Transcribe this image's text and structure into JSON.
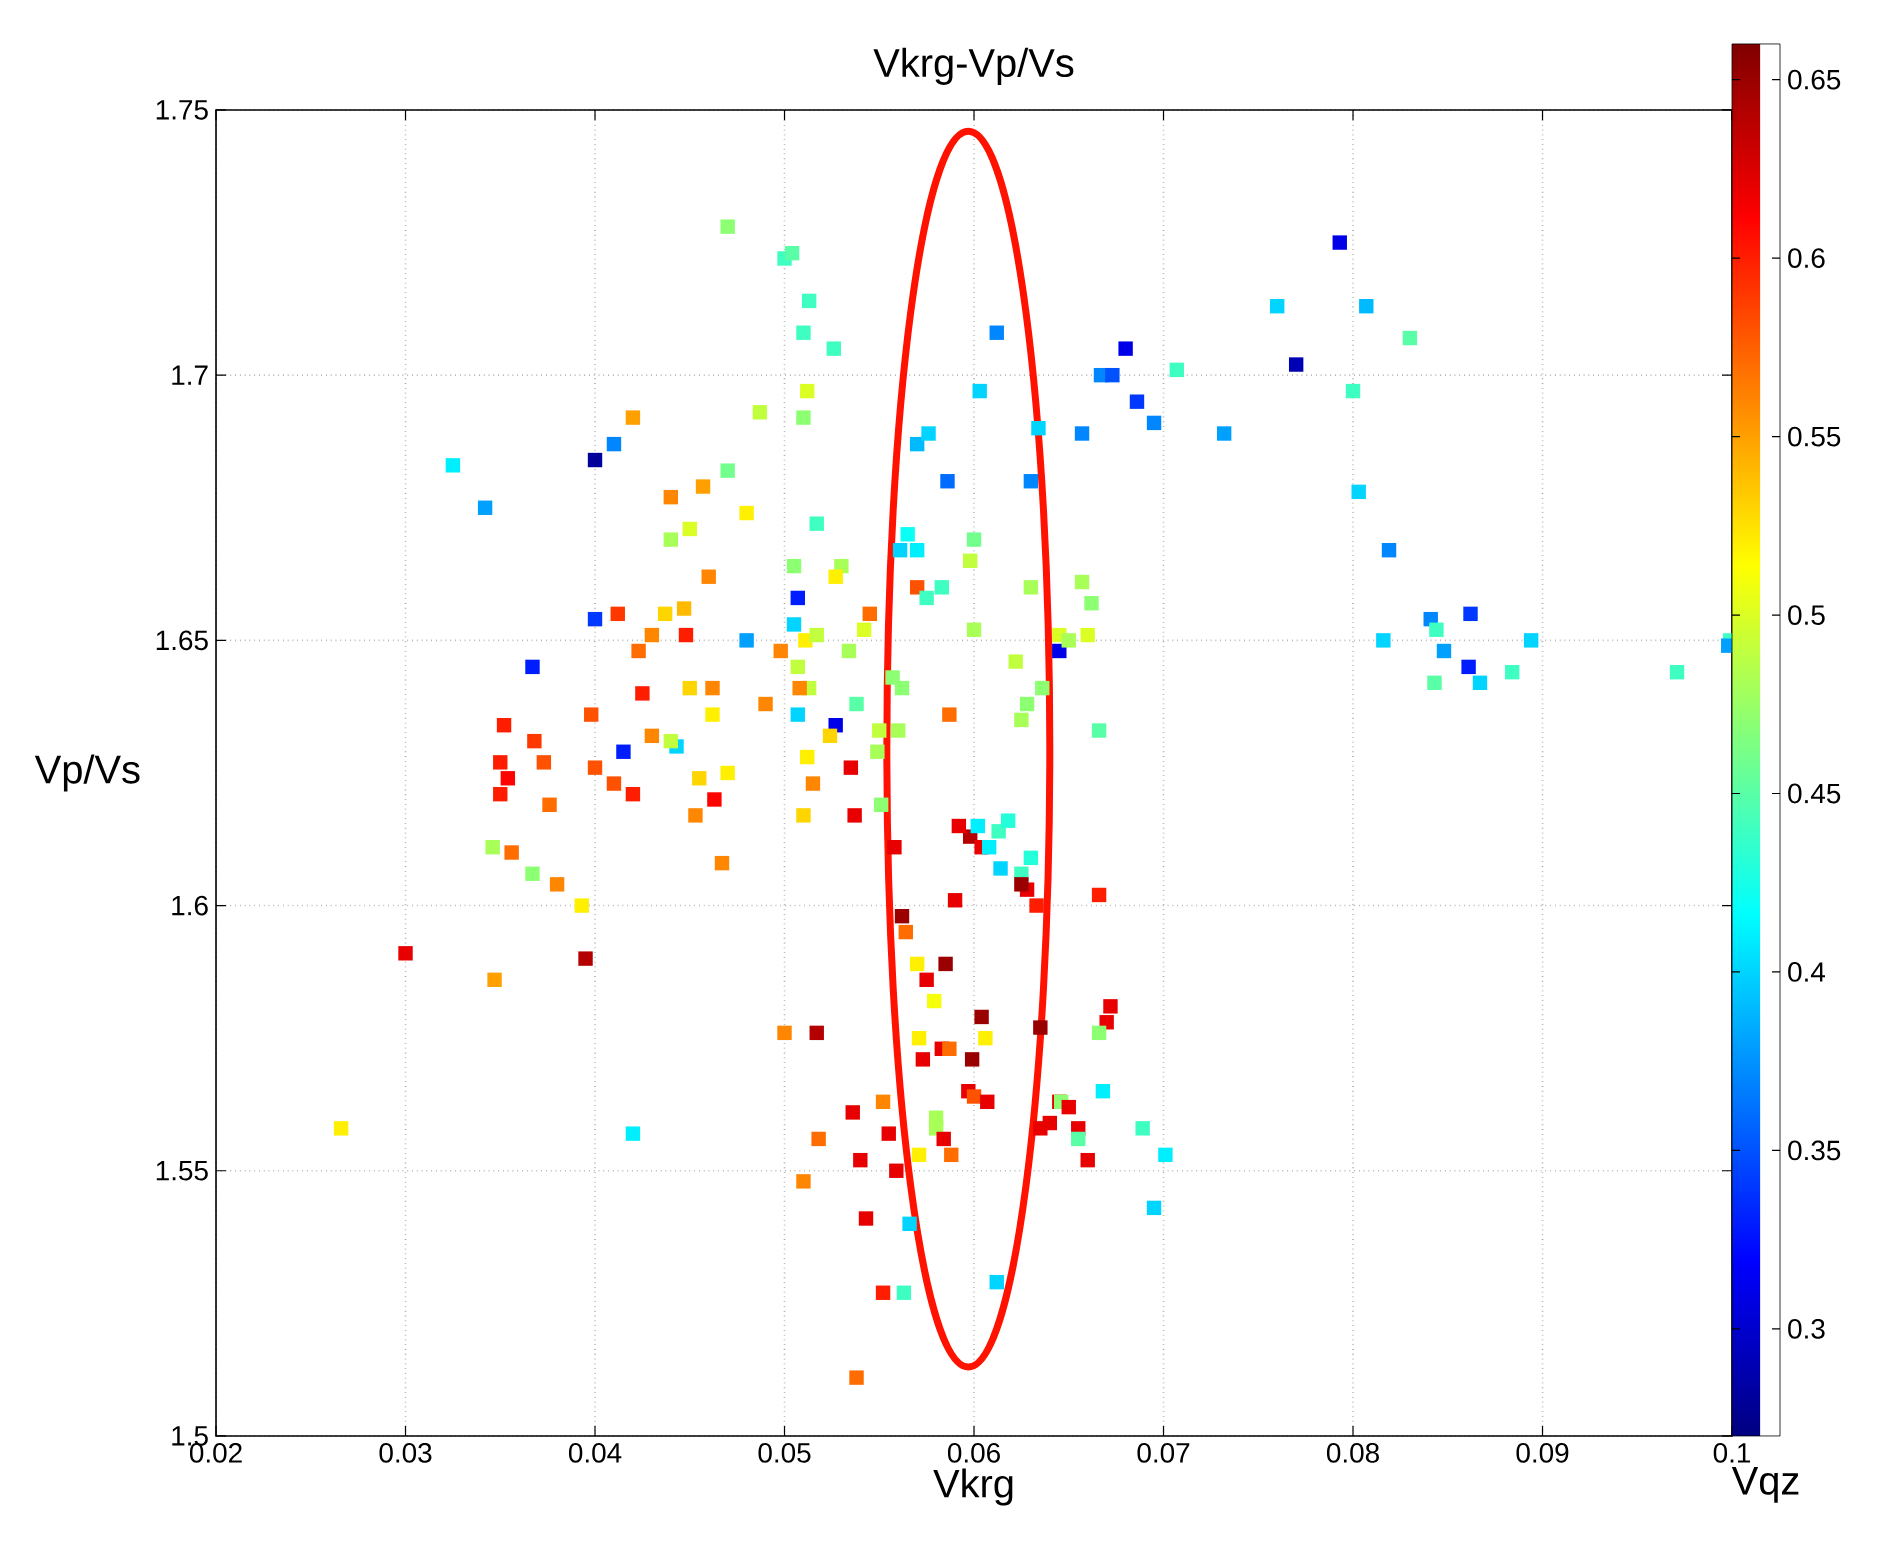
{
  "chart_data": {
    "type": "scatter",
    "title": "Vkrg-Vp/Vs",
    "xlabel": "Vkrg",
    "ylabel": "Vp/Vs",
    "clabel": "Vqz",
    "xlim": [
      0.02,
      0.1
    ],
    "xticks": [
      0.02,
      0.03,
      0.04,
      0.05,
      0.06,
      0.07,
      0.08,
      0.09,
      0.1
    ],
    "ylim": [
      1.5,
      1.75
    ],
    "yticks": [
      1.5,
      1.55,
      1.6,
      1.65,
      1.7,
      1.75
    ],
    "clim": [
      0.27,
      0.66
    ],
    "cticks": [
      0.3,
      0.35,
      0.4,
      0.45,
      0.5,
      0.55,
      0.6,
      0.65
    ],
    "grid": true,
    "marker": "square",
    "x": [
      0.0325,
      0.0342,
      0.04,
      0.041,
      0.042,
      0.0367,
      0.04,
      0.0412,
      0.0352,
      0.035,
      0.0354,
      0.035,
      0.0368,
      0.0373,
      0.0376,
      0.0346,
      0.0356,
      0.0367,
      0.038,
      0.0393,
      0.03,
      0.0395,
      0.0347,
      0.0266,
      0.042,
      0.0398,
      0.04,
      0.041,
      0.042,
      0.0415,
      0.0423,
      0.0425,
      0.043,
      0.043,
      0.0443,
      0.0437,
      0.045,
      0.044,
      0.044,
      0.044,
      0.045,
      0.0457,
      0.046,
      0.0447,
      0.0462,
      0.0462,
      0.0455,
      0.0453,
      0.0448,
      0.0463,
      0.0467,
      0.047,
      0.047,
      0.047,
      0.048,
      0.048,
      0.0487,
      0.049,
      0.0498,
      0.0505,
      0.05,
      0.0504,
      0.0513,
      0.051,
      0.0526,
      0.0512,
      0.051,
      0.0507,
      0.0505,
      0.0511,
      0.0507,
      0.0513,
      0.0517,
      0.0508,
      0.0507,
      0.0512,
      0.0515,
      0.051,
      0.05,
      0.0517,
      0.0518,
      0.051,
      0.0527,
      0.0524,
      0.053,
      0.0527,
      0.0517,
      0.0534,
      0.0538,
      0.0542,
      0.055,
      0.0535,
      0.0537,
      0.0545,
      0.0549,
      0.0551,
      0.0536,
      0.054,
      0.0543,
      0.0538,
      0.0552,
      0.0552,
      0.0555,
      0.0559,
      0.0557,
      0.056,
      0.0562,
      0.0561,
      0.0565,
      0.057,
      0.057,
      0.0583,
      0.0575,
      0.057,
      0.0576,
      0.0586,
      0.0603,
      0.0612,
      0.0558,
      0.0562,
      0.0564,
      0.057,
      0.0575,
      0.0579,
      0.0585,
      0.0583,
      0.0571,
      0.058,
      0.058,
      0.0584,
      0.0573,
      0.0571,
      0.0588,
      0.0587,
      0.0566,
      0.0563,
      0.0598,
      0.0602,
      0.0604,
      0.0592,
      0.0587,
      0.059,
      0.0604,
      0.0606,
      0.0599,
      0.0597,
      0.06,
      0.0607,
      0.06,
      0.0598,
      0.06,
      0.0613,
      0.0608,
      0.0614,
      0.0612,
      0.0618,
      0.0625,
      0.0628,
      0.0625,
      0.063,
      0.0633,
      0.0625,
      0.0628,
      0.0622,
      0.0636,
      0.063,
      0.0634,
      0.063,
      0.0635,
      0.0635,
      0.064,
      0.0645,
      0.0646,
      0.065,
      0.0655,
      0.066,
      0.0655,
      0.0645,
      0.0645,
      0.065,
      0.066,
      0.0657,
      0.0662,
      0.0666,
      0.0666,
      0.067,
      0.0672,
      0.0666,
      0.0668,
      0.0689,
      0.0701,
      0.0695,
      0.0657,
      0.0667,
      0.0673,
      0.068,
      0.0686,
      0.0695,
      0.0707,
      0.0732,
      0.076,
      0.077,
      0.0793,
      0.08,
      0.0803,
      0.0807,
      0.083,
      0.0819,
      0.0816,
      0.0841,
      0.0844,
      0.0848,
      0.0862,
      0.0861,
      0.0843,
      0.0867,
      0.0894,
      0.0884,
      0.0971,
      0.0999,
      0.0998
    ],
    "values": [
      1.683,
      1.675,
      1.684,
      1.687,
      1.692,
      1.645,
      1.654,
      1.655,
      1.634,
      1.627,
      1.624,
      1.621,
      1.631,
      1.627,
      1.619,
      1.611,
      1.61,
      1.606,
      1.604,
      1.6,
      1.591,
      1.59,
      1.586,
      1.558,
      1.557,
      1.636,
      1.626,
      1.623,
      1.621,
      1.629,
      1.648,
      1.64,
      1.651,
      1.632,
      1.63,
      1.655,
      1.641,
      1.631,
      1.677,
      1.669,
      1.671,
      1.679,
      1.662,
      1.656,
      1.641,
      1.636,
      1.624,
      1.617,
      1.651,
      1.62,
      1.608,
      1.625,
      1.682,
      1.728,
      1.674,
      1.65,
      1.693,
      1.638,
      1.648,
      1.664,
      1.722,
      1.723,
      1.714,
      1.708,
      1.705,
      1.697,
      1.692,
      1.658,
      1.653,
      1.65,
      1.645,
      1.641,
      1.651,
      1.641,
      1.636,
      1.628,
      1.623,
      1.617,
      1.576,
      1.576,
      1.556,
      1.548,
      1.634,
      1.632,
      1.664,
      1.662,
      1.672,
      1.648,
      1.638,
      1.652,
      1.633,
      1.626,
      1.617,
      1.655,
      1.629,
      1.619,
      1.561,
      1.552,
      1.541,
      1.511,
      1.527,
      1.563,
      1.557,
      1.55,
      1.643,
      1.633,
      1.641,
      1.667,
      1.67,
      1.66,
      1.667,
      1.66,
      1.658,
      1.687,
      1.689,
      1.68,
      1.697,
      1.708,
      1.611,
      1.598,
      1.595,
      1.589,
      1.586,
      1.582,
      1.589,
      1.573,
      1.575,
      1.56,
      1.558,
      1.556,
      1.571,
      1.553,
      1.553,
      1.573,
      1.54,
      1.527,
      1.613,
      1.615,
      1.611,
      1.615,
      1.636,
      1.601,
      1.579,
      1.575,
      1.571,
      1.565,
      1.564,
      1.563,
      1.652,
      1.665,
      1.669,
      1.614,
      1.611,
      1.607,
      1.529,
      1.616,
      1.606,
      1.603,
      1.604,
      1.609,
      1.6,
      1.635,
      1.638,
      1.646,
      1.641,
      1.66,
      1.69,
      1.68,
      1.577,
      1.558,
      1.559,
      1.563,
      1.563,
      1.562,
      1.558,
      1.552,
      1.556,
      1.651,
      1.648,
      1.65,
      1.651,
      1.661,
      1.657,
      1.633,
      1.602,
      1.578,
      1.581,
      1.576,
      1.565,
      1.558,
      1.553,
      1.543,
      1.689,
      1.7,
      1.7,
      1.705,
      1.695,
      1.691,
      1.701,
      1.689,
      1.713,
      1.702,
      1.725,
      1.697,
      1.678,
      1.713,
      1.707,
      1.667,
      1.65,
      1.654,
      1.652,
      1.648,
      1.655,
      1.645,
      1.642,
      1.642,
      1.65,
      1.644,
      1.644,
      1.65,
      1.649
    ],
    "cvalues": [
      0.41,
      0.38,
      0.28,
      0.37,
      0.55,
      0.33,
      0.34,
      0.59,
      0.6,
      0.6,
      0.61,
      0.6,
      0.59,
      0.58,
      0.57,
      0.48,
      0.57,
      0.47,
      0.56,
      0.52,
      0.62,
      0.64,
      0.55,
      0.52,
      0.41,
      0.58,
      0.58,
      0.58,
      0.6,
      0.33,
      0.57,
      0.6,
      0.56,
      0.56,
      0.4,
      0.53,
      0.53,
      0.49,
      0.56,
      0.48,
      0.5,
      0.55,
      0.56,
      0.54,
      0.56,
      0.52,
      0.53,
      0.56,
      0.6,
      0.61,
      0.56,
      0.52,
      0.46,
      0.47,
      0.52,
      0.38,
      0.49,
      0.56,
      0.56,
      0.47,
      0.44,
      0.45,
      0.44,
      0.44,
      0.44,
      0.5,
      0.47,
      0.33,
      0.4,
      0.52,
      0.49,
      0.49,
      0.49,
      0.56,
      0.4,
      0.52,
      0.56,
      0.53,
      0.56,
      0.64,
      0.57,
      0.56,
      0.31,
      0.53,
      0.48,
      0.52,
      0.44,
      0.48,
      0.45,
      0.5,
      0.49,
      0.62,
      0.62,
      0.57,
      0.48,
      0.47,
      0.62,
      0.62,
      0.62,
      0.57,
      0.6,
      0.56,
      0.62,
      0.62,
      0.47,
      0.48,
      0.47,
      0.4,
      0.42,
      0.58,
      0.41,
      0.44,
      0.44,
      0.39,
      0.4,
      0.36,
      0.4,
      0.37,
      0.62,
      0.65,
      0.57,
      0.52,
      0.62,
      0.51,
      0.65,
      0.62,
      0.52,
      0.48,
      0.48,
      0.62,
      0.62,
      0.52,
      0.57,
      0.57,
      0.4,
      0.44,
      0.64,
      0.41,
      0.62,
      0.62,
      0.57,
      0.62,
      0.65,
      0.52,
      0.65,
      0.62,
      0.58,
      0.62,
      0.48,
      0.49,
      0.46,
      0.44,
      0.41,
      0.4,
      0.4,
      0.43,
      0.44,
      0.62,
      0.65,
      0.43,
      0.6,
      0.48,
      0.47,
      0.49,
      0.47,
      0.48,
      0.4,
      0.37,
      0.65,
      0.62,
      0.62,
      0.62,
      0.47,
      0.62,
      0.62,
      0.62,
      0.45,
      0.5,
      0.31,
      0.48,
      0.5,
      0.48,
      0.47,
      0.45,
      0.6,
      0.62,
      0.62,
      0.47,
      0.41,
      0.44,
      0.41,
      0.4,
      0.37,
      0.37,
      0.35,
      0.31,
      0.34,
      0.37,
      0.44,
      0.38,
      0.4,
      0.29,
      0.31,
      0.44,
      0.4,
      0.39,
      0.45,
      0.37,
      0.4,
      0.37,
      0.44,
      0.38,
      0.34,
      0.33,
      0.45,
      0.4,
      0.4,
      0.44,
      0.44,
      0.44,
      0.38
    ]
  }
}
